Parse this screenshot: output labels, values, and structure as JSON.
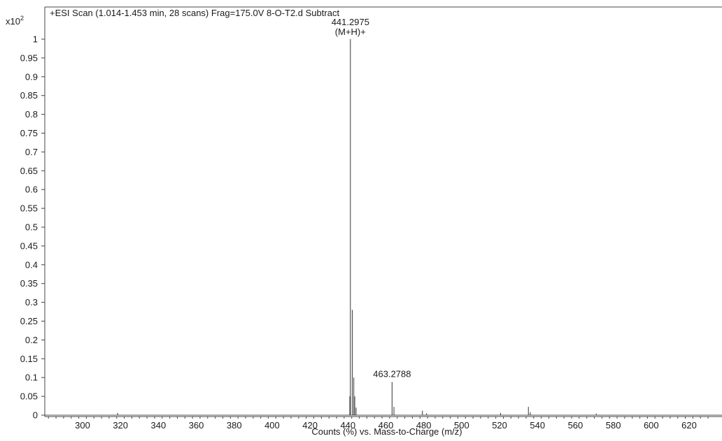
{
  "chart_data": {
    "type": "line",
    "title": "+ESI Scan (1.014-1.453 min, 28 scans) Frag=175.0V 8-O-T2.d  Subtract",
    "xlabel": "Counts (%) vs. Mass-to-Charge (m/z)",
    "ylabel": "",
    "y_multiplier": "x10",
    "y_multiplier_exp": "2",
    "xlim": [
      280,
      632
    ],
    "ylim": [
      0,
      1.05
    ],
    "x_ticks": [
      300,
      320,
      340,
      360,
      380,
      400,
      420,
      440,
      460,
      480,
      500,
      520,
      540,
      560,
      580,
      600,
      620
    ],
    "y_ticks": [
      0,
      0.05,
      0.1,
      0.15,
      0.2,
      0.25,
      0.3,
      0.35,
      0.4,
      0.45,
      0.5,
      0.55,
      0.6,
      0.65,
      0.7,
      0.75,
      0.8,
      0.85,
      0.9,
      0.95,
      1
    ],
    "y_tick_labels": [
      "0",
      "0.05",
      "0.1",
      "0.15",
      "0.2",
      "0.25",
      "0.3",
      "0.35",
      "0.4",
      "0.45",
      "0.5",
      "0.55",
      "0.6",
      "0.65",
      "0.7",
      "0.75",
      "0.8",
      "0.85",
      "0.9",
      "0.95",
      "1"
    ],
    "grid": false,
    "peaks": [
      {
        "x": 441.2975,
        "y": 1.0
      },
      {
        "x": 442.3,
        "y": 0.28
      },
      {
        "x": 443.1,
        "y": 0.1
      },
      {
        "x": 443.6,
        "y": 0.05
      },
      {
        "x": 441.0,
        "y": 0.05
      },
      {
        "x": 444.3,
        "y": 0.02
      },
      {
        "x": 463.2788,
        "y": 0.088
      },
      {
        "x": 464.28,
        "y": 0.022
      },
      {
        "x": 479.3,
        "y": 0.012
      },
      {
        "x": 535.2,
        "y": 0.022
      },
      {
        "x": 536.2,
        "y": 0.008
      },
      {
        "x": 520.5,
        "y": 0.006
      },
      {
        "x": 318.5,
        "y": 0.006
      },
      {
        "x": 481.5,
        "y": 0.005
      },
      {
        "x": 571.0,
        "y": 0.004
      }
    ],
    "annotations": [
      {
        "x": 441.2975,
        "y": 1.0,
        "label": "441.2975",
        "sublabel": "(M+H)+"
      },
      {
        "x": 463.2788,
        "y": 0.088,
        "label": "463.2788"
      }
    ]
  }
}
